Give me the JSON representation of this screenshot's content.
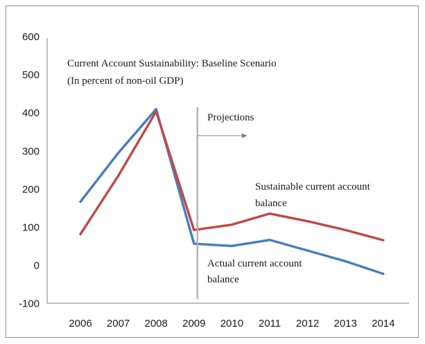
{
  "chart_data": {
    "type": "line",
    "title": "Current Account Sustainability: Baseline Scenario",
    "subtitle": "(In percent of non-oil GDP)",
    "categories": [
      "2006",
      "2007",
      "2008",
      "2009",
      "2010",
      "2011",
      "2012",
      "2013",
      "2014"
    ],
    "ylim": [
      -100,
      600
    ],
    "yticks": [
      "600",
      "500",
      "400",
      "300",
      "200",
      "100",
      "0",
      "-100"
    ],
    "ytick_values": [
      600,
      500,
      400,
      300,
      200,
      100,
      0,
      -100
    ],
    "grid": false,
    "legend": "none",
    "series": [
      {
        "name": "Actual current account balance",
        "color": "#4a7ebb",
        "values": [
          167,
          295,
          410,
          57,
          51,
          67,
          39,
          11,
          -22
        ]
      },
      {
        "name": "Sustainable current account balance",
        "color": "#be4b48",
        "values": [
          82,
          235,
          404,
          93,
          107,
          136,
          116,
          93,
          66
        ]
      }
    ],
    "annotations": {
      "projections_label": "Projections",
      "projection_start": "2009",
      "sustainable_label_line1": "Sustainable current account",
      "sustainable_label_line2": "balance",
      "actual_label_line1": "Actual current account",
      "actual_label_line2": "balance"
    },
    "colors": {
      "divider": "#b3b3b3",
      "arrow": "#7f7f7f",
      "axis": "#7f7f7f"
    }
  }
}
